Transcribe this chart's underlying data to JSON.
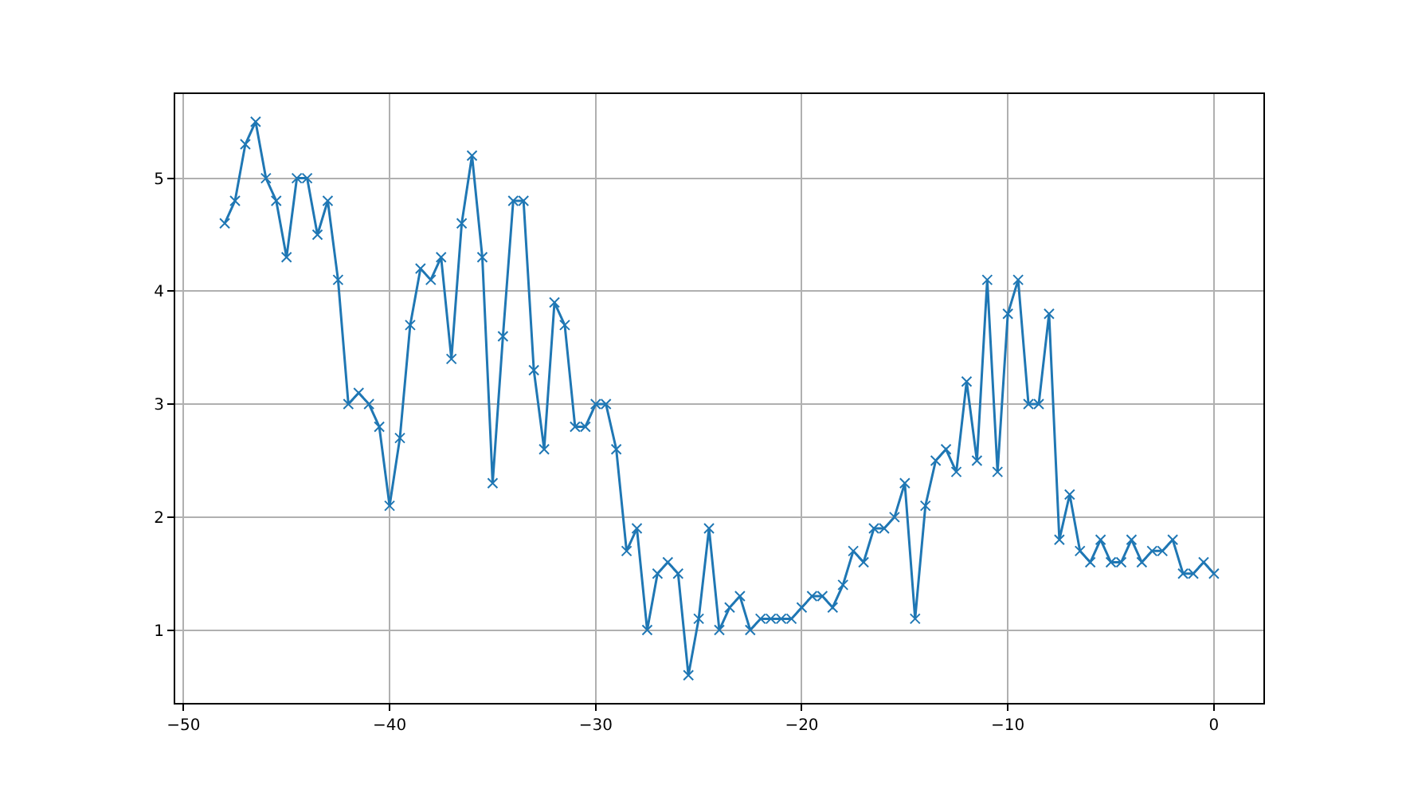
{
  "chart_data": {
    "type": "line",
    "x": [
      -48,
      -47.5,
      -47,
      -46.5,
      -46,
      -45.5,
      -45,
      -44.5,
      -44,
      -43.5,
      -43,
      -42.5,
      -42,
      -41.5,
      -41,
      -40.5,
      -40,
      -39.5,
      -39,
      -38.5,
      -38,
      -37.5,
      -37,
      -36.5,
      -36,
      -35.5,
      -35,
      -34.5,
      -34,
      -33.5,
      -33,
      -32.5,
      -32,
      -31.5,
      -31,
      -30.5,
      -30,
      -29.5,
      -29,
      -28.5,
      -28,
      -27.5,
      -27,
      -26.5,
      -26,
      -25.5,
      -25,
      -24.5,
      -24,
      -23.5,
      -23,
      -22.5,
      -22,
      -21.5,
      -21,
      -20.5,
      -20,
      -19.5,
      -19,
      -18.5,
      -18,
      -17.5,
      -17,
      -16.5,
      -16,
      -15.5,
      -15,
      -14.5,
      -14,
      -13.5,
      -13,
      -12.5,
      -12,
      -11.5,
      -11,
      -10.5,
      -10,
      -9.5,
      -9,
      -8.5,
      -8,
      -7.5,
      -7,
      -6.5,
      -6,
      -5.5,
      -5,
      -4.5,
      -4,
      -3.5,
      -3,
      -2.5,
      -2,
      -1.5,
      -1,
      -0.5,
      0
    ],
    "series": [
      {
        "color": "#1f77b4",
        "values": [
          4.6,
          4.8,
          5.3,
          5.5,
          5.0,
          4.8,
          4.3,
          5.0,
          5.0,
          4.5,
          4.8,
          4.1,
          3.0,
          3.1,
          3.0,
          2.8,
          2.1,
          2.7,
          3.7,
          4.2,
          4.1,
          4.3,
          3.4,
          4.6,
          5.2,
          4.3,
          2.3,
          3.6,
          4.8,
          4.8,
          3.3,
          2.6,
          3.9,
          3.7,
          2.8,
          2.8,
          3.0,
          3.0,
          2.6,
          1.7,
          1.9,
          1.0,
          1.5,
          1.6,
          1.5,
          0.6,
          1.1,
          1.9,
          1.0,
          1.2,
          1.3,
          1.0,
          1.1,
          1.1,
          1.1,
          1.1,
          1.2,
          1.3,
          1.3,
          1.2,
          1.4,
          1.7,
          1.6,
          1.9,
          1.9,
          2.0,
          2.3,
          1.1,
          2.1,
          2.5,
          2.6,
          2.4,
          3.2,
          2.5,
          4.1,
          2.4,
          3.8,
          4.1,
          3.0,
          3.0,
          3.8,
          1.8,
          2.2,
          1.7,
          1.6,
          1.8,
          1.6,
          1.6,
          1.8,
          1.6,
          1.7,
          1.7,
          1.8,
          1.5,
          1.5,
          1.6,
          1.5
        ]
      }
    ],
    "xlim": [
      -50.4,
      2.4
    ],
    "xticks": [
      -50,
      -40,
      -30,
      -20,
      -10,
      0
    ],
    "ylim": [
      0.355,
      5.745
    ],
    "yticks": [
      1,
      2,
      3,
      4,
      5
    ],
    "grid": true,
    "marker": "cross",
    "line_style": "solid"
  }
}
